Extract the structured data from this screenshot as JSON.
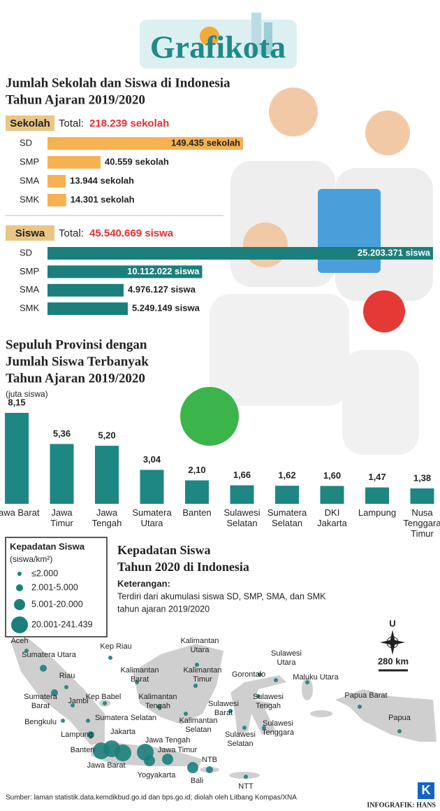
{
  "logo": "Grafikota",
  "section_title": [
    "Jumlah Sekolah dan Siswa di Indonesia",
    "Tahun Ajaran 2019/2020"
  ],
  "chart_data": [
    {
      "type": "bar",
      "orientation": "horizontal",
      "label": "Sekolah",
      "total_prefix": "Total:",
      "total": "218.239 sekolah",
      "categories": [
        "SD",
        "SMP",
        "SMA",
        "SMK"
      ],
      "values": [
        149435,
        40559,
        13944,
        14301
      ],
      "value_labels": [
        "149.435 sekolah",
        "40.559 sekolah",
        "13.944 sekolah",
        "14.301 sekolah"
      ],
      "color": "#f6b251"
    },
    {
      "type": "bar",
      "orientation": "horizontal",
      "label": "Siswa",
      "total_prefix": "Total:",
      "total": "45.540.669 siswa",
      "categories": [
        "SD",
        "SMP",
        "SMA",
        "SMK"
      ],
      "values": [
        25203371,
        10112022,
        4976127,
        5249149
      ],
      "value_labels": [
        "25.203.371 siswa",
        "10.112.022 siswa",
        "4.976.127 siswa",
        "5.249.149 siswa"
      ],
      "color": "#1b7f7c"
    },
    {
      "type": "bar",
      "orientation": "vertical",
      "title": [
        "Sepuluh Provinsi dengan",
        "Jumlah Siswa  Terbanyak",
        "Tahun Ajaran 2019/2020"
      ],
      "subtitle": "(juta siswa)",
      "categories": [
        "Jawa Barat",
        "Jawa Timur",
        "Jawa Tengah",
        "Sumatera Utara",
        "Banten",
        "Sulawesi Selatan",
        "Sumatera Selatan",
        "DKI Jakarta",
        "Lampung",
        "Nusa Tenggara Timur"
      ],
      "values": [
        8.15,
        5.36,
        5.2,
        3.04,
        2.1,
        1.66,
        1.62,
        1.6,
        1.47,
        1.38
      ],
      "value_labels": [
        "8,15",
        "5,36",
        "5,20",
        "3,04",
        "2,10",
        "1,66",
        "1,62",
        "1,60",
        "1,47",
        "1,38"
      ],
      "color": "#1e8683"
    }
  ],
  "map": {
    "title": [
      "Kepadatan Siswa",
      "Tahun 2020 di Indonesia"
    ],
    "note_heading": "Keterangan:",
    "note": [
      "Terdiri dari akumulasi siswa SD, SMP, SMA, dan SMK",
      "tahun ajaran 2019/2020"
    ],
    "legend_title": "Kepadatan Siswa",
    "legend_unit": "(siswa/km²)",
    "legend": [
      "≤2.000",
      "2.001-5.000",
      "5.001-20.000",
      "20.001-241.439"
    ],
    "color": "#1b7f7c",
    "places": [
      "Aceh",
      "Sumatera Utara",
      "Riau",
      "Sumatera Barat",
      "Jambi",
      "Kep Babel",
      "Bengkulu",
      "Sumatera Selatan",
      "Lampung",
      "Banten",
      "Jakarta",
      "Jawa Barat",
      "Jawa Tengah",
      "Yogyakarta",
      "Jawa Timur",
      "Bali",
      "NTB",
      "NTT",
      "Kep Riau",
      "Kalimantan Utara",
      "Kalimantan Barat",
      "Kalimantan Timur",
      "Kalimantan Tengah",
      "Kalimantan Selatan",
      "Sulawesi Utara",
      "Gorontalo",
      "Sulawesi Barat",
      "Sulawesi Tengah",
      "Sulawesi Selatan",
      "Sulawesi Tenggara",
      "Maluku Utara",
      "Papua Barat",
      "Papua"
    ],
    "north": "U",
    "scale": "280 km"
  },
  "source": "Sumber: laman statistik.data.kemdikbud.go.id dan bps.go.id; diolah oleh Litbang Kompas/XNA",
  "publisher": "K",
  "credit": "INFOGRAFIK: HANS"
}
